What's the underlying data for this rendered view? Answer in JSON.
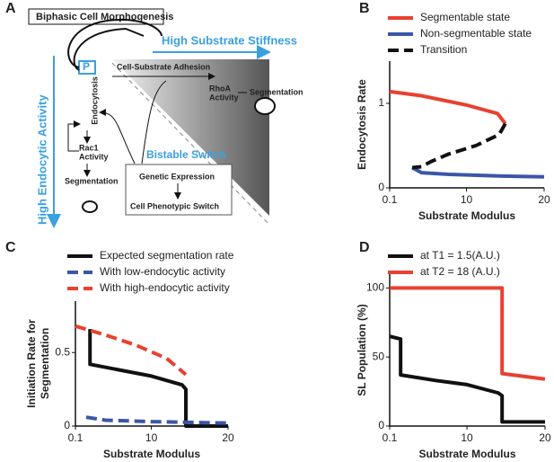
{
  "panels": [
    "A",
    "B",
    "C",
    "D"
  ],
  "diagram": {
    "title": "Biphasic Cell Morphogenesis",
    "stiffness": "High Substrate Stiffness",
    "endocytic": "High Endocytic Activity",
    "p": "P",
    "adhesion": "Cell-Substrate Adhesion",
    "rhoa": [
      "RhoA",
      "Activity"
    ],
    "segmentation_right": "Segmentation",
    "endocytosis": "Endocytosis",
    "rac1": [
      "Rac1",
      "Activity"
    ],
    "segmentation_left": "Segmentation",
    "switch": "Bistable Switch",
    "genetic": "Genetic Expression",
    "phenotypic": "Cell Phenotypic Switch"
  },
  "chart_data": [
    {
      "type": "line",
      "xlabel": "Substrate Modulus",
      "ylabel": "Endocytosis Rate",
      "xlim": [
        0.1,
        20
      ],
      "xticks": [
        0.1,
        10,
        20
      ],
      "ylim": [
        0,
        1.5
      ],
      "yticks": [
        0,
        1
      ],
      "series": [
        {
          "name": "Segmentable state",
          "color": "#e8412f",
          "dash": false,
          "x": [
            0.1,
            4.2,
            10,
            14,
            15
          ],
          "values": [
            1.14,
            1.09,
            0.98,
            0.88,
            0.76
          ]
        },
        {
          "name": "Non-segmentable state",
          "color": "#3a56a8",
          "dash": false,
          "x": [
            3,
            4.2,
            7.7,
            14.5,
            20
          ],
          "values": [
            0.24,
            0.18,
            0.16,
            0.14,
            0.13
          ]
        },
        {
          "name": "Transition",
          "color": "#111111",
          "dash": true,
          "x": [
            15,
            14.2,
            11.2,
            7.7,
            5.4,
            4.2,
            3
          ],
          "values": [
            0.76,
            0.63,
            0.5,
            0.4,
            0.31,
            0.25,
            0.24
          ]
        }
      ]
    },
    {
      "type": "line",
      "xlabel": "Substrate Modulus",
      "ylabel": [
        "Initiation Rate for",
        "Segmentation"
      ],
      "xlim": [
        0.1,
        20
      ],
      "xticks": [
        0.1,
        10,
        20
      ],
      "ylim": [
        0,
        0.85
      ],
      "yticks": [
        0,
        0.5
      ],
      "series": [
        {
          "name": "Expected segmentation rate",
          "color": "#111111",
          "dash": false,
          "x": [
            2,
            2,
            6,
            10,
            14,
            14.5,
            14.5,
            20
          ],
          "values": [
            0.66,
            0.42,
            0.38,
            0.34,
            0.28,
            0.25,
            0,
            0
          ]
        },
        {
          "name": "With low-endocytic activity",
          "color": "#3a56a8",
          "dash": true,
          "x": [
            1.5,
            4,
            10,
            20
          ],
          "values": [
            0.06,
            0.04,
            0.03,
            0.02
          ]
        },
        {
          "name": "With high-endocytic activity",
          "color": "#e8412f",
          "dash": true,
          "x": [
            0.1,
            4,
            8,
            12,
            14.5
          ],
          "values": [
            0.68,
            0.62,
            0.55,
            0.46,
            0.35
          ]
        }
      ]
    },
    {
      "type": "line",
      "xlabel": "Substrate Modulus",
      "ylabel": "SL Population (%)",
      "xlim": [
        0.1,
        20
      ],
      "xticks": [
        0.1,
        10,
        20
      ],
      "ylim": [
        0,
        110
      ],
      "yticks": [
        0,
        50,
        100
      ],
      "series": [
        {
          "name": "at T1 = 1.5(A.U.)",
          "color": "#111111",
          "dash": false,
          "x": [
            0.1,
            1.5,
            1.5,
            6,
            10,
            14,
            14.5,
            14.5,
            20
          ],
          "values": [
            65,
            63,
            37,
            33,
            30,
            24,
            22,
            3,
            3
          ]
        },
        {
          "name": "at T2 = 18 (A.U.)",
          "color": "#e8412f",
          "dash": false,
          "x": [
            0.1,
            14.5,
            14.5,
            20
          ],
          "values": [
            100,
            100,
            38,
            34
          ]
        }
      ]
    }
  ]
}
